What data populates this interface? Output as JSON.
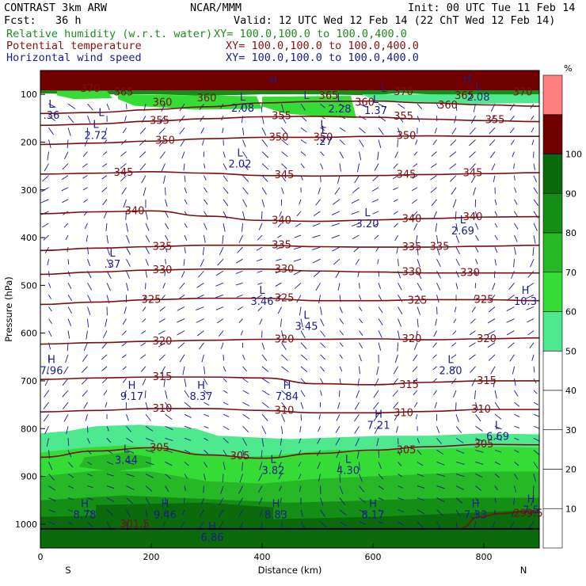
{
  "header": {
    "model": "CONTRAST  3km ARW",
    "org": "NCAR/MMM",
    "init": "Init: 00 UTC Tue 11 Feb 14",
    "fcst": "Fcst:   36 h",
    "valid": "Valid: 12 UTC Wed 12 Feb 14 (22 ChT Wed 12 Feb 14)",
    "fields": [
      {
        "name": "Relative humidity (w.r.t. water)",
        "xy": "XY= 100.0,100.0 to 100.0,400.0",
        "color": "#1e8c1e"
      },
      {
        "name": "Potential temperature",
        "xy": "XY= 100.0,100.0 to 100.0,400.0",
        "color": "#8b0f0f"
      },
      {
        "name": "Horizontal wind speed",
        "xy": "XY= 100.0,100.0 to 100.0,400.0",
        "color": "#1c1c8c"
      }
    ]
  },
  "chart_data": {
    "type": "heatmap",
    "xlabel": "Distance (km)",
    "ylabel": "Pressure (hPa)",
    "xlim": [
      0,
      900
    ],
    "ylim": [
      1050,
      50
    ],
    "x_ticks": [
      0,
      200,
      400,
      600,
      800
    ],
    "y_ticks": [
      100,
      200,
      300,
      400,
      500,
      600,
      700,
      800,
      900,
      1000
    ],
    "endpoints": {
      "left": "S",
      "right": "N"
    },
    "rh_colorbar": {
      "unit": "%",
      "levels": [
        10,
        20,
        30,
        40,
        50,
        60,
        70,
        80,
        90,
        100
      ],
      "colors": [
        "#ffffff",
        "#ffffff",
        "#ffffff",
        "#ffffff",
        "#ffffff",
        "#4ee88e",
        "#36dc36",
        "#26b826",
        "#158e15",
        "#0b6a0b",
        "#700000",
        "#ff8080"
      ]
    },
    "theta_contours": [
      {
        "value": 360,
        "points": [
          [
            0,
            140
          ],
          [
            100,
            138
          ],
          [
            200,
            132
          ],
          [
            300,
            126
          ],
          [
            400,
            118
          ],
          [
            500,
            115
          ],
          [
            600,
            114
          ],
          [
            700,
            118
          ],
          [
            800,
            122
          ],
          [
            900,
            125
          ]
        ]
      },
      {
        "value": 355,
        "points": [
          [
            0,
            165
          ],
          [
            100,
            162
          ],
          [
            200,
            156
          ],
          [
            300,
            151
          ],
          [
            400,
            147
          ],
          [
            500,
            146
          ],
          [
            600,
            148
          ],
          [
            700,
            152
          ],
          [
            800,
            155
          ],
          [
            900,
            157
          ]
        ]
      },
      {
        "value": 350,
        "points": [
          [
            0,
            205
          ],
          [
            100,
            202
          ],
          [
            200,
            198
          ],
          [
            300,
            193
          ],
          [
            400,
            190
          ],
          [
            500,
            190
          ],
          [
            600,
            188
          ],
          [
            700,
            187
          ],
          [
            800,
            188
          ],
          [
            900,
            188
          ]
        ]
      },
      {
        "value": 345,
        "points": [
          [
            0,
            267
          ],
          [
            100,
            265
          ],
          [
            200,
            262
          ],
          [
            300,
            265
          ],
          [
            400,
            270
          ],
          [
            500,
            271
          ],
          [
            600,
            270
          ],
          [
            700,
            268
          ],
          [
            800,
            266
          ],
          [
            900,
            264
          ]
        ]
      },
      {
        "value": 340,
        "points": [
          [
            0,
            350
          ],
          [
            100,
            346
          ],
          [
            200,
            344
          ],
          [
            300,
            355
          ],
          [
            400,
            364
          ],
          [
            500,
            366
          ],
          [
            600,
            363
          ],
          [
            700,
            360
          ],
          [
            800,
            357
          ],
          [
            900,
            356
          ]
        ]
      },
      {
        "value": 335,
        "points": [
          [
            0,
            427
          ],
          [
            100,
            422
          ],
          [
            200,
            419
          ],
          [
            300,
            416
          ],
          [
            400,
            416
          ],
          [
            500,
            419
          ],
          [
            600,
            420
          ],
          [
            700,
            420
          ],
          [
            800,
            418
          ],
          [
            900,
            416
          ]
        ]
      },
      {
        "value": 330,
        "points": [
          [
            0,
            477
          ],
          [
            100,
            472
          ],
          [
            200,
            468
          ],
          [
            300,
            466
          ],
          [
            400,
            466
          ],
          [
            500,
            470
          ],
          [
            600,
            472
          ],
          [
            700,
            474
          ],
          [
            800,
            474
          ],
          [
            900,
            474
          ]
        ]
      },
      {
        "value": 325,
        "points": [
          [
            0,
            540
          ],
          [
            100,
            535
          ],
          [
            200,
            530
          ],
          [
            300,
            527
          ],
          [
            400,
            527
          ],
          [
            500,
            532
          ],
          [
            600,
            532
          ],
          [
            700,
            530
          ],
          [
            800,
            530
          ],
          [
            900,
            532
          ]
        ]
      },
      {
        "value": 320,
        "points": [
          [
            0,
            623
          ],
          [
            100,
            620
          ],
          [
            200,
            617
          ],
          [
            300,
            615
          ],
          [
            400,
            613
          ],
          [
            500,
            613
          ],
          [
            600,
            612
          ],
          [
            700,
            614
          ],
          [
            800,
            612
          ],
          [
            900,
            610
          ]
        ]
      },
      {
        "value": 315,
        "points": [
          [
            0,
            697
          ],
          [
            100,
            694
          ],
          [
            200,
            692
          ],
          [
            300,
            692
          ],
          [
            400,
            694
          ],
          [
            500,
            706
          ],
          [
            600,
            708
          ],
          [
            700,
            703
          ],
          [
            800,
            700
          ],
          [
            900,
            700
          ]
        ]
      },
      {
        "value": 310,
        "points": [
          [
            0,
            765
          ],
          [
            100,
            762
          ],
          [
            200,
            758
          ],
          [
            300,
            758
          ],
          [
            400,
            762
          ],
          [
            500,
            767
          ],
          [
            600,
            767
          ],
          [
            700,
            764
          ],
          [
            800,
            760
          ],
          [
            900,
            760
          ]
        ]
      },
      {
        "value": 305,
        "points": [
          [
            0,
            860
          ],
          [
            100,
            847
          ],
          [
            200,
            840
          ],
          [
            300,
            855
          ],
          [
            400,
            862
          ],
          [
            500,
            852
          ],
          [
            600,
            845
          ],
          [
            700,
            838
          ],
          [
            800,
            833
          ],
          [
            900,
            834
          ]
        ]
      },
      {
        "value": 299.5,
        "points": [
          [
            760,
            1008
          ],
          [
            790,
            985
          ],
          [
            830,
            978
          ],
          [
            870,
            974
          ],
          [
            900,
            975
          ]
        ]
      }
    ],
    "theta_labels": [
      {
        "text": "370",
        "x": 90,
        "p": 88
      },
      {
        "text": "365",
        "x": 150,
        "p": 96
      },
      {
        "text": "360",
        "x": 220,
        "p": 117
      },
      {
        "text": "360",
        "x": 300,
        "p": 108
      },
      {
        "text": "365",
        "x": 520,
        "p": 103
      },
      {
        "text": "360",
        "x": 585,
        "p": 117
      },
      {
        "text": "370",
        "x": 655,
        "p": 95
      },
      {
        "text": "365",
        "x": 765,
        "p": 103
      },
      {
        "text": "370",
        "x": 870,
        "p": 96
      },
      {
        "text": "360",
        "x": 735,
        "p": 123
      },
      {
        "text": "355",
        "x": 215,
        "p": 155
      },
      {
        "text": "355",
        "x": 435,
        "p": 145
      },
      {
        "text": "355",
        "x": 655,
        "p": 146
      },
      {
        "text": "355",
        "x": 820,
        "p": 154
      },
      {
        "text": "350",
        "x": 225,
        "p": 197
      },
      {
        "text": "350",
        "x": 430,
        "p": 190
      },
      {
        "text": "350",
        "x": 510,
        "p": 190
      },
      {
        "text": "350",
        "x": 660,
        "p": 187
      },
      {
        "text": "345",
        "x": 150,
        "p": 264
      },
      {
        "text": "345",
        "x": 440,
        "p": 269
      },
      {
        "text": "345",
        "x": 660,
        "p": 268
      },
      {
        "text": "345",
        "x": 780,
        "p": 265
      },
      {
        "text": "340",
        "x": 170,
        "p": 344
      },
      {
        "text": "340",
        "x": 435,
        "p": 364
      },
      {
        "text": "340",
        "x": 670,
        "p": 361
      },
      {
        "text": "340",
        "x": 780,
        "p": 357
      },
      {
        "text": "335",
        "x": 220,
        "p": 419
      },
      {
        "text": "335",
        "x": 435,
        "p": 416
      },
      {
        "text": "335",
        "x": 670,
        "p": 420
      },
      {
        "text": "335",
        "x": 720,
        "p": 419
      },
      {
        "text": "330",
        "x": 220,
        "p": 468
      },
      {
        "text": "330",
        "x": 440,
        "p": 466
      },
      {
        "text": "330",
        "x": 670,
        "p": 472
      },
      {
        "text": "330",
        "x": 775,
        "p": 474
      },
      {
        "text": "325",
        "x": 200,
        "p": 530
      },
      {
        "text": "325",
        "x": 440,
        "p": 527
      },
      {
        "text": "325",
        "x": 680,
        "p": 532
      },
      {
        "text": "325",
        "x": 800,
        "p": 530
      },
      {
        "text": "320",
        "x": 220,
        "p": 617
      },
      {
        "text": "320",
        "x": 440,
        "p": 613
      },
      {
        "text": "320",
        "x": 670,
        "p": 612
      },
      {
        "text": "320",
        "x": 805,
        "p": 612
      },
      {
        "text": "315",
        "x": 220,
        "p": 692
      },
      {
        "text": "315",
        "x": 665,
        "p": 708
      },
      {
        "text": "315",
        "x": 805,
        "p": 700
      },
      {
        "text": "310",
        "x": 220,
        "p": 758
      },
      {
        "text": "310",
        "x": 440,
        "p": 762
      },
      {
        "text": "310",
        "x": 655,
        "p": 767
      },
      {
        "text": "310",
        "x": 795,
        "p": 760
      },
      {
        "text": "305",
        "x": 215,
        "p": 840
      },
      {
        "text": "305",
        "x": 360,
        "p": 858
      },
      {
        "text": "305",
        "x": 660,
        "p": 845
      },
      {
        "text": "305",
        "x": 800,
        "p": 833
      },
      {
        "text": "301.5",
        "x": 170,
        "p": 1000
      },
      {
        "text": "299.5",
        "x": 880,
        "p": 978
      }
    ],
    "wind_extrema": [
      {
        "type": "H",
        "x": 420,
        "p": 78,
        "value": ""
      },
      {
        "type": "H",
        "x": 770,
        "p": 75,
        "value": ""
      },
      {
        "type": "L",
        "x": 110,
        "p": 145,
        "value": ""
      },
      {
        "type": "L",
        "x": 480,
        "p": 110,
        "value": ""
      },
      {
        "type": "L",
        "x": 620,
        "p": 95,
        "value": ""
      },
      {
        "type": "L",
        "x": 20,
        "p": 128,
        "value": ".36"
      },
      {
        "type": "L",
        "x": 100,
        "p": 170,
        "value": "2.72"
      },
      {
        "type": "L",
        "x": 365,
        "p": 113,
        "value": "2.08"
      },
      {
        "type": "L",
        "x": 540,
        "p": 115,
        "value": "2.28"
      },
      {
        "type": "L",
        "x": 605,
        "p": 118,
        "value": "1.37"
      },
      {
        "type": "L",
        "x": 790,
        "p": 90,
        "value": "2.08"
      },
      {
        "type": "L",
        "x": 510,
        "p": 170,
        "value": ""
      },
      {
        "type": "L",
        "x": 512,
        "p": 183,
        "value": ".27"
      },
      {
        "type": "L",
        "x": 360,
        "p": 230,
        "value": "2.02"
      },
      {
        "type": "L",
        "x": 590,
        "p": 355,
        "value": "3.20"
      },
      {
        "type": "L",
        "x": 762,
        "p": 370,
        "value": "2.69"
      },
      {
        "type": "L",
        "x": 130,
        "p": 440,
        "value": ".37"
      },
      {
        "type": "L",
        "x": 400,
        "p": 518,
        "value": "3.46"
      },
      {
        "type": "L",
        "x": 480,
        "p": 570,
        "value": "3.45"
      },
      {
        "type": "H",
        "x": 875,
        "p": 518,
        "value": "10.3"
      },
      {
        "type": "H",
        "x": 20,
        "p": 663,
        "value": "7.96"
      },
      {
        "type": "L",
        "x": 740,
        "p": 663,
        "value": "2.80"
      },
      {
        "type": "H",
        "x": 165,
        "p": 717,
        "value": "9.17"
      },
      {
        "type": "H",
        "x": 290,
        "p": 717,
        "value": "8.37"
      },
      {
        "type": "H",
        "x": 445,
        "p": 717,
        "value": "7.84"
      },
      {
        "type": "H",
        "x": 610,
        "p": 777,
        "value": "7.21"
      },
      {
        "type": "L",
        "x": 825,
        "p": 800,
        "value": "6.69"
      },
      {
        "type": "L",
        "x": 155,
        "p": 850,
        "value": "3.44"
      },
      {
        "type": "L",
        "x": 420,
        "p": 872,
        "value": "3.82"
      },
      {
        "type": "L",
        "x": 555,
        "p": 872,
        "value": "4.30"
      },
      {
        "type": "H",
        "x": 80,
        "p": 965,
        "value": "8.78"
      },
      {
        "type": "H",
        "x": 225,
        "p": 965,
        "value": "9.46"
      },
      {
        "type": "H",
        "x": 425,
        "p": 965,
        "value": "8.83"
      },
      {
        "type": "H",
        "x": 600,
        "p": 965,
        "value": "8.17"
      },
      {
        "type": "H",
        "x": 785,
        "p": 965,
        "value": "7.33"
      },
      {
        "type": "H",
        "x": 885,
        "p": 955,
        "value": "7.5"
      },
      {
        "type": "H",
        "x": 310,
        "p": 1012,
        "value": "6.86"
      }
    ]
  }
}
